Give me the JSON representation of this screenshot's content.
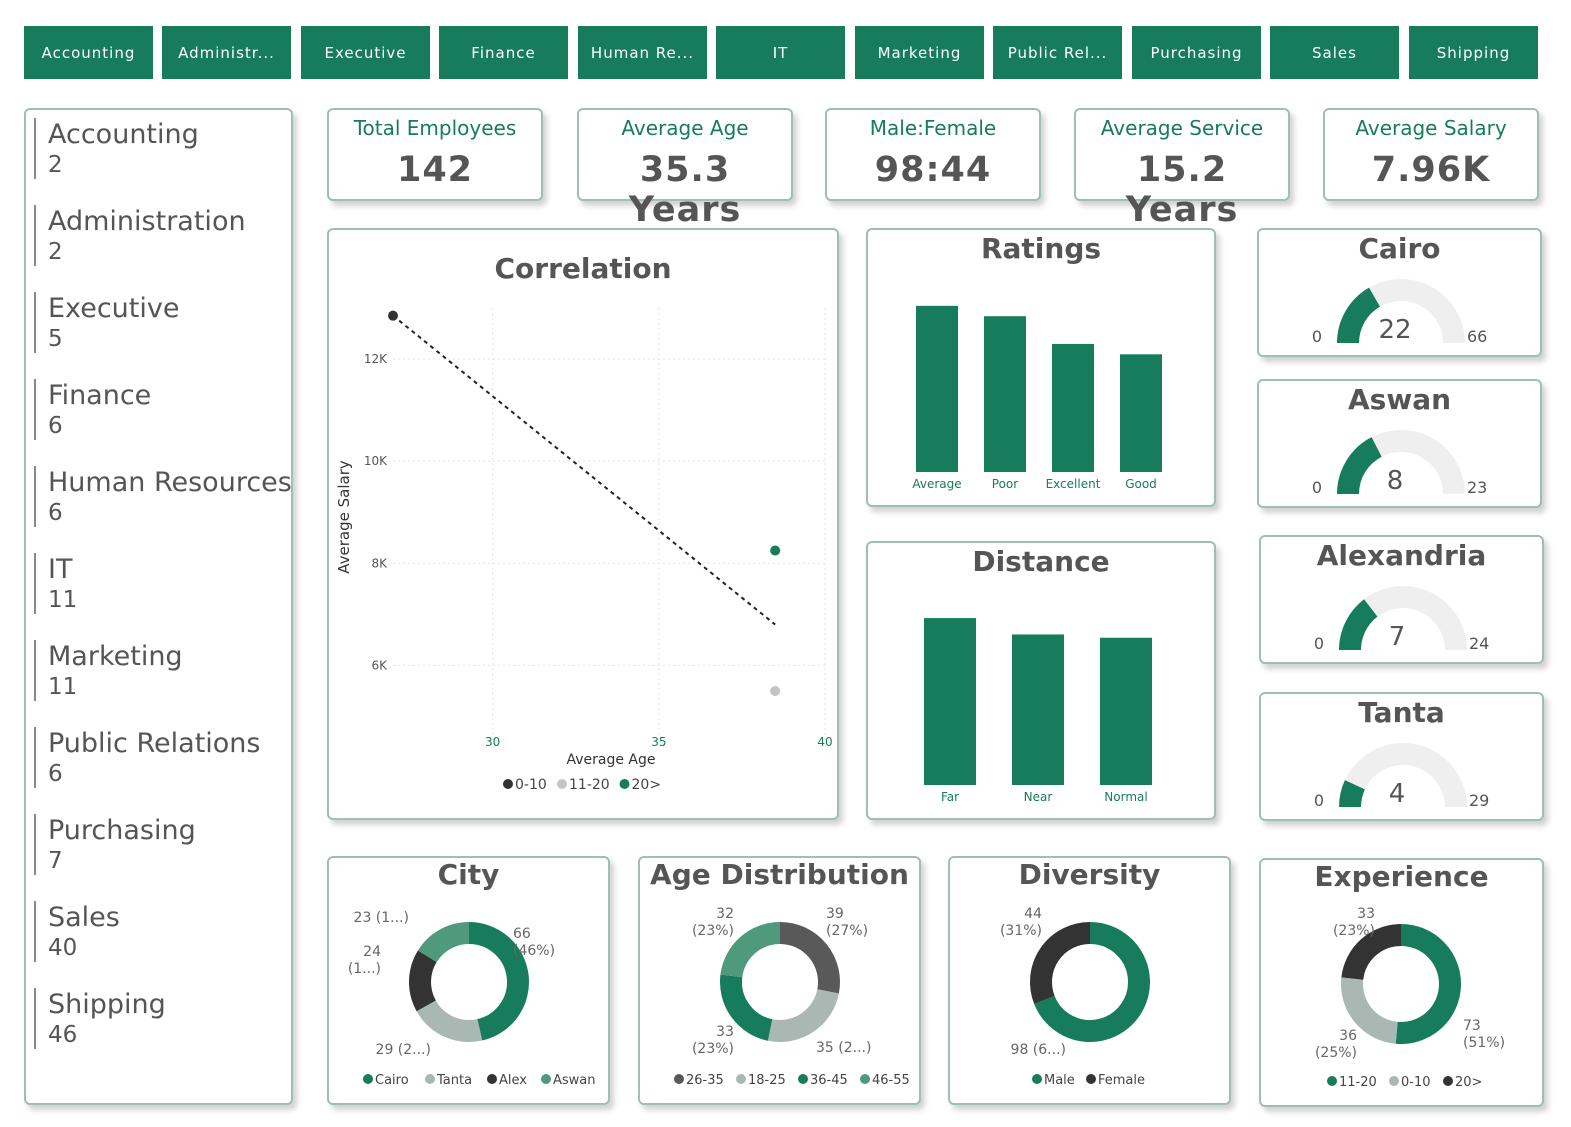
{
  "tabs": [
    "Accounting",
    "Administr...",
    "Executive",
    "Finance",
    "Human Re...",
    "IT",
    "Marketing",
    "Public Rel...",
    "Purchasing",
    "Sales",
    "Shipping"
  ],
  "departments": [
    {
      "name": "Accounting",
      "count": "2"
    },
    {
      "name": "Administration",
      "count": "2"
    },
    {
      "name": "Executive",
      "count": "5"
    },
    {
      "name": "Finance",
      "count": "6"
    },
    {
      "name": "Human Resources",
      "count": "6"
    },
    {
      "name": "IT",
      "count": "11"
    },
    {
      "name": "Marketing",
      "count": "11"
    },
    {
      "name": "Public Relations",
      "count": "6"
    },
    {
      "name": "Purchasing",
      "count": "7"
    },
    {
      "name": "Sales",
      "count": "40"
    },
    {
      "name": "Shipping",
      "count": "46"
    }
  ],
  "kpis": [
    {
      "title": "Total Employees",
      "value": "142"
    },
    {
      "title": "Average Age",
      "value": "35.3 Years"
    },
    {
      "title": "Male:Female",
      "value": "98:44"
    },
    {
      "title": "Average Service",
      "value": "15.2 Years"
    },
    {
      "title": "Average Salary",
      "value": "7.96K"
    }
  ],
  "colors": {
    "primary": "#177c5b",
    "dark": "#333333",
    "light": "#aab8b3",
    "gray": "#b8b8b8",
    "track": "#efefef"
  },
  "chart_data": [
    {
      "type": "scatter",
      "title": "Correlation",
      "xlabel": "Average Age",
      "ylabel": "Average Salary",
      "xlim": [
        27,
        40
      ],
      "ylim": [
        4500,
        13000
      ],
      "xticks": [
        "30",
        "35",
        "40"
      ],
      "yticks": [
        "12K",
        "10K",
        "8K",
        "6K"
      ],
      "legend_position": "bottom",
      "series": [
        {
          "name": "0-10",
          "points": [
            {
              "x": 27,
              "y": 12850
            }
          ],
          "color": "#333333"
        },
        {
          "name": "11-20",
          "points": [
            {
              "x": 38.5,
              "y": 5500
            }
          ],
          "color": "#c4c4c4"
        },
        {
          "name": "20>",
          "points": [
            {
              "x": 38.5,
              "y": 8250
            }
          ],
          "color": "#177c5b"
        }
      ],
      "trendline": {
        "from": {
          "x": 27,
          "y": 12850
        },
        "to": {
          "x": 38.5,
          "y": 6800
        }
      }
    },
    {
      "type": "bar",
      "title": "Ratings",
      "categories": [
        "Average",
        "Poor",
        "Excellent",
        "Good"
      ],
      "values": [
        48,
        45,
        37,
        34
      ],
      "ylim": [
        0,
        52
      ]
    },
    {
      "type": "bar",
      "title": "Distance",
      "categories": [
        "Far",
        "Near",
        "Normal"
      ],
      "values": [
        51,
        46,
        45
      ],
      "ylim": [
        0,
        55
      ]
    },
    {
      "type": "gauge",
      "gauges": [
        {
          "title": "Cairo",
          "value": 22,
          "min": "0",
          "max": 66
        },
        {
          "title": "Aswan",
          "value": 8,
          "min": "0",
          "max": 23
        },
        {
          "title": "Alexandria",
          "value": 7,
          "min": "0",
          "max": 24
        },
        {
          "title": "Tanta",
          "value": 4,
          "min": "0",
          "max": 29
        }
      ]
    },
    {
      "type": "pie",
      "title": "City",
      "slices": [
        {
          "name": "Cairo",
          "value": 66,
          "label": [
            "66",
            "(46%)"
          ]
        },
        {
          "name": "Tanta",
          "value": 29,
          "label": [
            "29 (2...)"
          ]
        },
        {
          "name": "Alex",
          "value": 24,
          "label": [
            "24",
            "(1...)"
          ]
        },
        {
          "name": "Aswan",
          "value": 23,
          "label": [
            "23 (1...)"
          ]
        }
      ],
      "legend": [
        "Cairo",
        "Tanta",
        "Alex",
        "Aswan"
      ]
    },
    {
      "type": "pie",
      "title": "Age Distribution",
      "slices": [
        {
          "name": "36-45",
          "value": 39,
          "label": [
            "39",
            "(27%)"
          ]
        },
        {
          "name": "18-25",
          "value": 35,
          "label": [
            "35 (2...)"
          ]
        },
        {
          "name": "46-55",
          "value": 33,
          "label": [
            "33",
            "(23%)"
          ]
        },
        {
          "name": "26-35",
          "value": 32,
          "label": [
            "32",
            "(23%)"
          ]
        }
      ],
      "legend": [
        "26-35",
        "18-25",
        "36-45",
        "46-55"
      ]
    },
    {
      "type": "pie",
      "title": "Diversity",
      "slices": [
        {
          "name": "Male",
          "value": 98,
          "label": [
            "98 (6...)"
          ]
        },
        {
          "name": "Female",
          "value": 44,
          "label": [
            "44",
            "(31%)"
          ]
        }
      ],
      "legend": [
        "Male",
        "Female"
      ]
    },
    {
      "type": "pie",
      "title": "Experience",
      "slices": [
        {
          "name": "11-20",
          "value": 73,
          "label": [
            "73",
            "(51%)"
          ]
        },
        {
          "name": "0-10",
          "value": 36,
          "label": [
            "36",
            "(25%)"
          ]
        },
        {
          "name": "20>",
          "value": 33,
          "label": [
            "33",
            "(23%)"
          ]
        }
      ],
      "legend": [
        "11-20",
        "0-10",
        "20>"
      ]
    }
  ]
}
